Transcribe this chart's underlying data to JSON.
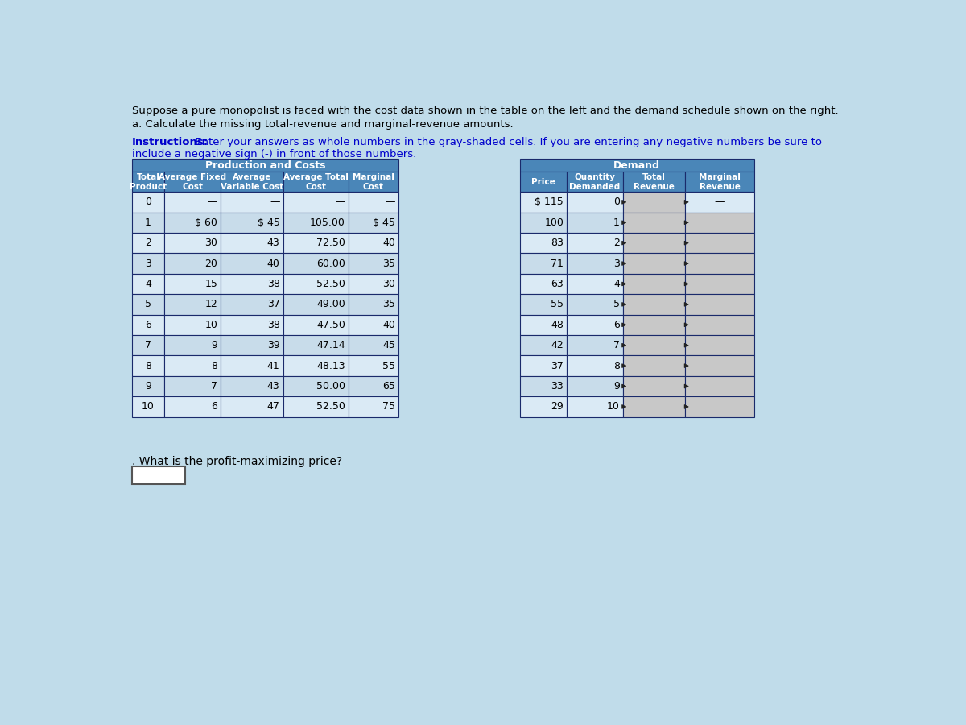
{
  "title_line1": "Suppose a pure monopolist is faced with the cost data shown in the table on the left and the demand schedule shown on the right.",
  "title_line2": "a. Calculate the missing total-revenue and marginal-revenue amounts.",
  "instructions_bold": "Instructions:",
  "instructions_rest": " Enter your answers as whole numbers in the gray-shaded cells. If you are entering any negative numbers be sure to",
  "instructions_line2": "include a negative sign (-) in front of those numbers.",
  "bg_color": "#c0dcea",
  "table_header_bg": "#4a86b8",
  "table_row_bg1": "#daeaf5",
  "table_row_bg2": "#c8dcea",
  "gray_cell_bg": "#c8c8c8",
  "white_cell_bg": "#f0f0f0",
  "border_color": "#1a2a6b",
  "text_color_dark": "#000000",
  "text_color_blue": "#0000cc",
  "prod_cost_headers": [
    "Total\nProduct",
    "Average Fixed\nCost",
    "Average\nVariable Cost",
    "Average Total\nCost",
    "Marginal\nCost"
  ],
  "demand_headers": [
    "Price",
    "Quantity\nDemanded",
    "Total\nRevenue",
    "Marginal\nRevenue"
  ],
  "prod_rows": [
    [
      "0",
      "—",
      "—",
      "—",
      "—"
    ],
    [
      "1",
      "$ 60",
      "$ 45",
      "105.00",
      "$ 45"
    ],
    [
      "2",
      "30",
      "43",
      "72.50",
      "40"
    ],
    [
      "3",
      "20",
      "40",
      "60.00",
      "35"
    ],
    [
      "4",
      "15",
      "38",
      "52.50",
      "30"
    ],
    [
      "5",
      "12",
      "37",
      "49.00",
      "35"
    ],
    [
      "6",
      "10",
      "38",
      "47.50",
      "40"
    ],
    [
      "7",
      "9",
      "39",
      "47.14",
      "45"
    ],
    [
      "8",
      "8",
      "41",
      "48.13",
      "55"
    ],
    [
      "9",
      "7",
      "43",
      "50.00",
      "65"
    ],
    [
      "10",
      "6",
      "47",
      "52.50",
      "75"
    ]
  ],
  "demand_rows": [
    [
      "$ 115",
      "0",
      "",
      "—"
    ],
    [
      "100",
      "1",
      "",
      ""
    ],
    [
      "83",
      "2",
      "",
      ""
    ],
    [
      "71",
      "3",
      "",
      ""
    ],
    [
      "63",
      "4",
      "",
      ""
    ],
    [
      "55",
      "5",
      "",
      ""
    ],
    [
      "48",
      "6",
      "",
      ""
    ],
    [
      "42",
      "7",
      "",
      ""
    ],
    [
      "37",
      "8",
      "",
      ""
    ],
    [
      "33",
      "9",
      "",
      ""
    ],
    [
      "29",
      "10",
      "",
      ""
    ]
  ],
  "footer_text": ". What is the profit-maximizing price?"
}
